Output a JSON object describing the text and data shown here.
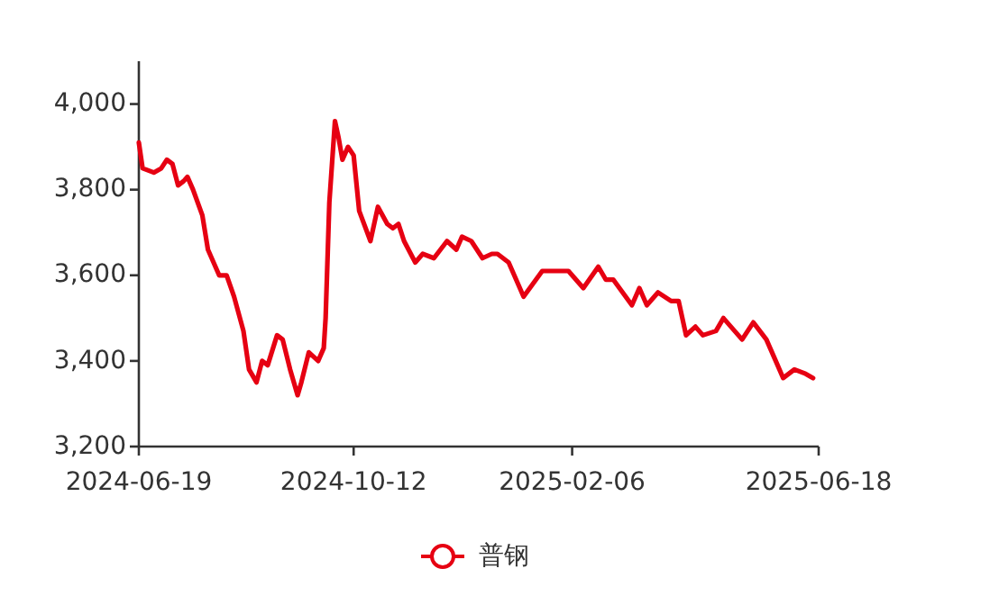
{
  "chart_data": {
    "type": "line",
    "xlim": [
      "2024-06-19",
      "2025-06-18"
    ],
    "ylim": [
      3200,
      4100
    ],
    "xticks": [
      {
        "value": "2024-06-19",
        "label": "2024-06-19"
      },
      {
        "value": "2024-10-12",
        "label": "2024-10-12"
      },
      {
        "value": "2025-02-06",
        "label": "2025-02-06"
      },
      {
        "value": "2025-06-18",
        "label": "2025-06-18"
      }
    ],
    "yticks": [
      {
        "value": 3200,
        "label": "3,200"
      },
      {
        "value": 3400,
        "label": "3,400"
      },
      {
        "value": 3600,
        "label": "3,600"
      },
      {
        "value": 3800,
        "label": "3,800"
      },
      {
        "value": 4000,
        "label": "4,000"
      }
    ],
    "grid": false,
    "legend": "bottom",
    "x": [
      "2024-06-19",
      "2024-06-21",
      "2024-06-27",
      "2024-07-01",
      "2024-07-04",
      "2024-07-07",
      "2024-07-10",
      "2024-07-13",
      "2024-07-15",
      "2024-07-18",
      "2024-07-23",
      "2024-07-26",
      "2024-07-29",
      "2024-08-01",
      "2024-08-05",
      "2024-08-09",
      "2024-08-14",
      "2024-08-17",
      "2024-08-21",
      "2024-08-24",
      "2024-08-27",
      "2024-09-01",
      "2024-09-04",
      "2024-09-08",
      "2024-09-12",
      "2024-09-14",
      "2024-09-18",
      "2024-09-23",
      "2024-09-26",
      "2024-09-27",
      "2024-09-29",
      "2024-10-02",
      "2024-10-04",
      "2024-10-06",
      "2024-10-09",
      "2024-10-12",
      "2024-10-15",
      "2024-10-21",
      "2024-10-25",
      "2024-10-30",
      "2024-11-02",
      "2024-11-05",
      "2024-11-08",
      "2024-11-14",
      "2024-11-18",
      "2024-11-24",
      "2024-12-01",
      "2024-12-06",
      "2024-12-09",
      "2024-12-14",
      "2024-12-20",
      "2024-12-25",
      "2024-12-28",
      "2025-01-03",
      "2025-01-11",
      "2025-01-21",
      "2025-02-04",
      "2025-02-12",
      "2025-02-20",
      "2025-02-24",
      "2025-02-28",
      "2025-03-05",
      "2025-03-10",
      "2025-03-14",
      "2025-03-18",
      "2025-03-24",
      "2025-03-31",
      "2025-04-04",
      "2025-04-08",
      "2025-04-13",
      "2025-04-17",
      "2025-04-24",
      "2025-04-28",
      "2025-05-02",
      "2025-05-08",
      "2025-05-14",
      "2025-05-21",
      "2025-05-26",
      "2025-05-30",
      "2025-06-05",
      "2025-06-11",
      "2025-06-15"
    ],
    "series": [
      {
        "name": "普钢",
        "color": "#e60012",
        "values": [
          3910,
          3850,
          3840,
          3850,
          3870,
          3860,
          3810,
          3820,
          3830,
          3800,
          3740,
          3660,
          3630,
          3600,
          3600,
          3550,
          3470,
          3380,
          3350,
          3400,
          3390,
          3460,
          3450,
          3380,
          3320,
          3350,
          3420,
          3400,
          3430,
          3500,
          3770,
          3960,
          3920,
          3870,
          3900,
          3880,
          3750,
          3680,
          3760,
          3720,
          3710,
          3720,
          3680,
          3630,
          3650,
          3640,
          3680,
          3660,
          3690,
          3680,
          3640,
          3650,
          3650,
          3630,
          3550,
          3610,
          3610,
          3570,
          3620,
          3590,
          3590,
          3560,
          3530,
          3570,
          3530,
          3560,
          3540,
          3540,
          3460,
          3480,
          3460,
          3470,
          3500,
          3480,
          3450,
          3490,
          3450,
          3400,
          3360,
          3380,
          3370,
          3360
        ]
      }
    ]
  }
}
